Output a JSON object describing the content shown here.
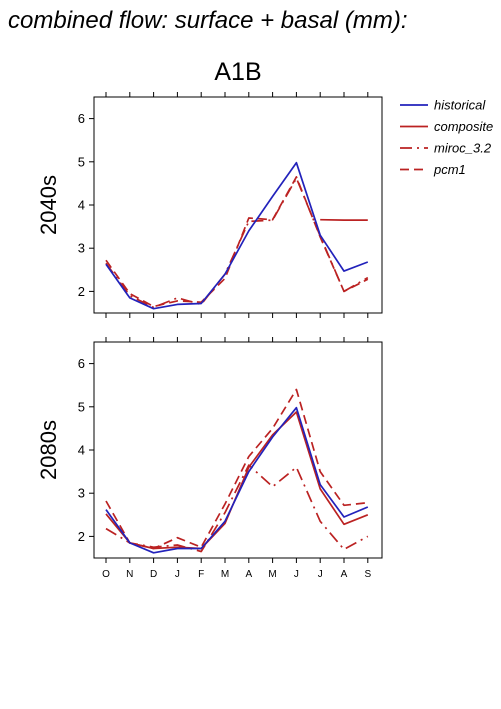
{
  "page_title": "combined flow: surface + basal (mm):",
  "scenario_title": "A1B",
  "legend": [
    {
      "label": "historical"
    },
    {
      "label": "composite"
    },
    {
      "label": "miroc_3.2"
    },
    {
      "label": "pcm1"
    }
  ],
  "colors": {
    "historical": "#2222bb",
    "composite": "#bb2222",
    "miroc_3.2": "#bb2222",
    "pcm1": "#bb2222"
  },
  "chart_data": [
    {
      "type": "line",
      "panel_label": "2040s",
      "x": [
        "O",
        "N",
        "D",
        "J",
        "F",
        "M",
        "A",
        "M",
        "J",
        "J",
        "A",
        "S"
      ],
      "yticks": [
        2,
        3,
        4,
        5,
        6
      ],
      "ylim": [
        1.5,
        6.5
      ],
      "xlabel": "",
      "ylabel": "",
      "series": [
        {
          "name": "historical",
          "style": "solid",
          "color": "#2222bb",
          "values": [
            2.63,
            1.85,
            1.6,
            1.7,
            1.72,
            2.4,
            3.4,
            4.2,
            4.98,
            3.3,
            2.47,
            2.68
          ]
        },
        {
          "name": "composite",
          "style": "solid",
          "color": "#bb2222",
          "values": [
            null,
            null,
            null,
            null,
            null,
            null,
            null,
            null,
            null,
            3.66,
            3.65,
            3.65
          ]
        },
        {
          "name": "miroc_3.2",
          "style": "dashdot",
          "color": "#bb2222",
          "values": [
            2.65,
            1.9,
            1.63,
            1.85,
            1.7,
            2.4,
            3.62,
            3.65,
            4.62,
            3.28,
            2.0,
            2.32
          ]
        },
        {
          "name": "pcm1",
          "style": "dashed",
          "color": "#bb2222",
          "values": [
            2.72,
            1.95,
            1.65,
            1.78,
            1.75,
            2.3,
            3.7,
            3.66,
            4.65,
            3.26,
            2.0,
            2.28
          ]
        }
      ]
    },
    {
      "type": "line",
      "panel_label": "2080s",
      "x": [
        "O",
        "N",
        "D",
        "J",
        "F",
        "M",
        "A",
        "M",
        "J",
        "J",
        "A",
        "S"
      ],
      "yticks": [
        2,
        3,
        4,
        5,
        6
      ],
      "ylim": [
        1.5,
        6.5
      ],
      "xlabel": "",
      "ylabel": "",
      "series": [
        {
          "name": "historical",
          "style": "solid",
          "color": "#2222bb",
          "values": [
            2.62,
            1.85,
            1.62,
            1.72,
            1.72,
            2.35,
            3.5,
            4.3,
            4.98,
            3.2,
            2.45,
            2.68
          ]
        },
        {
          "name": "composite",
          "style": "solid",
          "color": "#bb2222",
          "values": [
            2.52,
            1.85,
            1.72,
            1.75,
            1.72,
            2.3,
            3.6,
            4.35,
            4.88,
            3.1,
            2.28,
            2.5
          ]
        },
        {
          "name": "miroc_3.2",
          "style": "dashdot",
          "color": "#bb2222",
          "values": [
            2.18,
            1.85,
            1.75,
            1.8,
            1.65,
            2.55,
            3.65,
            3.15,
            3.6,
            2.35,
            1.7,
            2.0
          ]
        },
        {
          "name": "pcm1",
          "style": "dashed",
          "color": "#bb2222",
          "values": [
            2.82,
            1.85,
            1.72,
            1.97,
            1.75,
            2.75,
            3.85,
            4.5,
            5.4,
            3.5,
            2.72,
            2.78
          ]
        }
      ]
    }
  ]
}
